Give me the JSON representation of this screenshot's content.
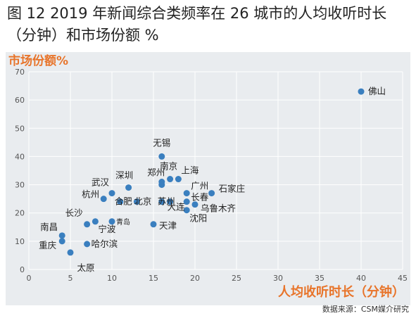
{
  "figure": {
    "title": "图 12 2019 年新闻综合类频率在 26 城市的人均收听时长（分钟）和市场份额 %",
    "source": "数据来源：CSM媒介研究"
  },
  "colors": {
    "accent": "#e8742a",
    "point": "#3a7fbf",
    "panel": "#e9ecef",
    "grid": "#ffffff",
    "label": "#222222"
  },
  "chart_data": {
    "type": "scatter",
    "xlabel": "人均收听时长（分钟）",
    "ylabel": "市场份额%",
    "xlim": [
      0,
      45
    ],
    "ylim": [
      0,
      70
    ],
    "xticks": [
      "0",
      "5",
      "10",
      "15",
      "20",
      "25",
      "30",
      "35",
      "40",
      "45"
    ],
    "yticks": [
      "0",
      "10",
      "20",
      "30",
      "40",
      "50",
      "60",
      "70"
    ],
    "grid": true,
    "points": [
      {
        "label": "佛山",
        "x": 40,
        "y": 63
      },
      {
        "label": "无锡",
        "x": 16,
        "y": 40
      },
      {
        "label": "南京",
        "x": 17,
        "y": 32
      },
      {
        "label": "上海",
        "x": 18,
        "y": 32
      },
      {
        "label": "深圳",
        "x": 12,
        "y": 29
      },
      {
        "label": "郑州",
        "x": 16,
        "y": 30
      },
      {
        "label": "武汉",
        "x": 10,
        "y": 27
      },
      {
        "label": "杭州",
        "x": 9,
        "y": 25
      },
      {
        "label": "合肥",
        "x": 11,
        "y": 24
      },
      {
        "label": "北京",
        "x": 13,
        "y": 24
      },
      {
        "label": "苏州",
        "x": 16,
        "y": 24
      },
      {
        "label": "广州",
        "x": 19,
        "y": 27
      },
      {
        "label": "石家庄",
        "x": 22,
        "y": 27
      },
      {
        "label": "长春",
        "x": 19,
        "y": 24
      },
      {
        "label": "大连",
        "x": 17,
        "y": 24
      },
      {
        "label": "乌鲁木齐",
        "x": 20,
        "y": 23
      },
      {
        "label": "沈阳",
        "x": 19,
        "y": 21
      },
      {
        "label": "长沙",
        "x": 7,
        "y": 16
      },
      {
        "label": "青岛",
        "x": 10,
        "y": 17
      },
      {
        "label": "天津",
        "x": 15,
        "y": 16
      },
      {
        "label": "宁波",
        "x": 8,
        "y": 17
      },
      {
        "label": "南昌",
        "x": 4,
        "y": 12
      },
      {
        "label": "哈尔滨",
        "x": 7,
        "y": 9
      },
      {
        "label": "重庆",
        "x": 4,
        "y": 10
      },
      {
        "label": "太原",
        "x": 5,
        "y": 6
      },
      {
        "label": "",
        "x": 16,
        "y": 31
      }
    ]
  }
}
